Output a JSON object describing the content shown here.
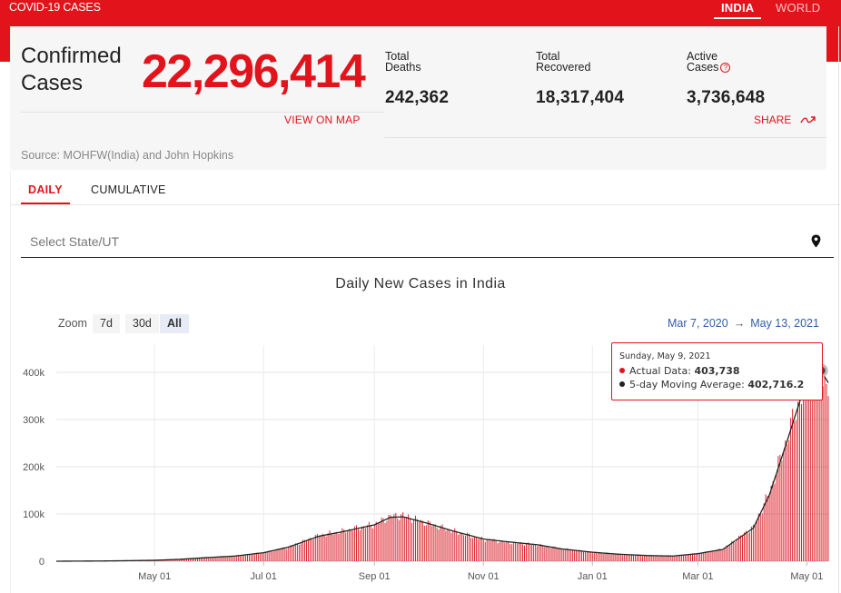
{
  "header": {
    "brand": "COVID-19 CASES",
    "region_tabs": [
      {
        "label": "INDIA",
        "active": true
      },
      {
        "label": "WORLD",
        "active": false
      }
    ]
  },
  "summary": {
    "confirmed_label": "Confirmed Cases",
    "confirmed_value": "22,296,414",
    "deaths_label": "Total Deaths",
    "deaths_value": "242,362",
    "recovered_label": "Total Recovered",
    "recovered_value": "18,317,404",
    "active_label": "Active Cases",
    "active_value": "3,736,648",
    "view_map": "VIEW ON MAP",
    "share": "SHARE",
    "source": "Source: MOHFW(India) and John Hopkins"
  },
  "tabs": [
    {
      "label": "DAILY",
      "active": true
    },
    {
      "label": "CUMULATIVE",
      "active": false
    }
  ],
  "state_select": {
    "placeholder": "Select State/UT",
    "icon": "location-pin-icon"
  },
  "zoom": {
    "label": "Zoom",
    "options": [
      "7d",
      "30d",
      "All"
    ],
    "selected": "All"
  },
  "range": {
    "from": "Mar 7, 2020",
    "arrow": "→",
    "to": "May 13, 2021"
  },
  "tooltip": {
    "date": "Sunday, May 9, 2021",
    "actual_label": "Actual Data:",
    "actual_value": "403,738",
    "average_label": "5-day Moving Average:",
    "average_value": "402,716.2"
  },
  "colors": {
    "accent": "#e3131b",
    "bar": "#d8101a",
    "average_line": "#222222",
    "link": "#335cad"
  },
  "chart_data": {
    "type": "bar",
    "title": "Daily New Cases in India",
    "x_range": [
      "2020-03-07",
      "2021-05-13"
    ],
    "x_ticks": [
      "May 01",
      "Jul 01",
      "Sep 01",
      "Nov 01",
      "Jan 01",
      "Mar 01",
      "May 01"
    ],
    "y_ticks": [
      "0",
      "100k",
      "200k",
      "300k",
      "400k"
    ],
    "ylim": [
      0,
      400000
    ],
    "grid": true,
    "series": [
      {
        "name": "Actual Data",
        "kind": "bar",
        "points": [
          [
            "2020-03-07",
            0
          ],
          [
            "2020-04-01",
            500
          ],
          [
            "2020-04-15",
            1100
          ],
          [
            "2020-05-01",
            2000
          ],
          [
            "2020-05-15",
            4000
          ],
          [
            "2020-06-01",
            8000
          ],
          [
            "2020-06-15",
            11000
          ],
          [
            "2020-07-01",
            18000
          ],
          [
            "2020-07-15",
            30000
          ],
          [
            "2020-08-01",
            55000
          ],
          [
            "2020-08-15",
            64000
          ],
          [
            "2020-09-01",
            78000
          ],
          [
            "2020-09-10",
            95000
          ],
          [
            "2020-09-17",
            97000
          ],
          [
            "2020-10-01",
            80000
          ],
          [
            "2020-10-15",
            64000
          ],
          [
            "2020-11-01",
            46000
          ],
          [
            "2020-11-15",
            40000
          ],
          [
            "2020-12-01",
            35000
          ],
          [
            "2020-12-15",
            26000
          ],
          [
            "2021-01-01",
            19000
          ],
          [
            "2021-01-15",
            15000
          ],
          [
            "2021-02-01",
            12000
          ],
          [
            "2021-02-15",
            11000
          ],
          [
            "2021-03-01",
            16000
          ],
          [
            "2021-03-15",
            26000
          ],
          [
            "2021-04-01",
            72000
          ],
          [
            "2021-04-10",
            145000
          ],
          [
            "2021-04-20",
            260000
          ],
          [
            "2021-05-01",
            390000
          ],
          [
            "2021-05-09",
            403738
          ],
          [
            "2021-05-13",
            362000
          ]
        ]
      },
      {
        "name": "5-day Moving Average",
        "kind": "line",
        "points": [
          [
            "2020-03-07",
            0
          ],
          [
            "2020-04-01",
            500
          ],
          [
            "2020-04-15",
            1100
          ],
          [
            "2020-05-01",
            2000
          ],
          [
            "2020-05-15",
            4000
          ],
          [
            "2020-06-01",
            8000
          ],
          [
            "2020-06-15",
            11000
          ],
          [
            "2020-07-01",
            18000
          ],
          [
            "2020-07-15",
            30000
          ],
          [
            "2020-08-01",
            53000
          ],
          [
            "2020-08-15",
            63000
          ],
          [
            "2020-09-01",
            77000
          ],
          [
            "2020-09-10",
            93000
          ],
          [
            "2020-09-17",
            94000
          ],
          [
            "2020-10-01",
            80000
          ],
          [
            "2020-10-15",
            64000
          ],
          [
            "2020-11-01",
            47000
          ],
          [
            "2020-11-15",
            41000
          ],
          [
            "2020-12-01",
            35000
          ],
          [
            "2020-12-15",
            26000
          ],
          [
            "2021-01-01",
            19000
          ],
          [
            "2021-01-15",
            15000
          ],
          [
            "2021-02-01",
            12000
          ],
          [
            "2021-02-15",
            11000
          ],
          [
            "2021-03-01",
            16000
          ],
          [
            "2021-03-15",
            25000
          ],
          [
            "2021-04-01",
            70000
          ],
          [
            "2021-04-10",
            140000
          ],
          [
            "2021-04-20",
            255000
          ],
          [
            "2021-05-01",
            385000
          ],
          [
            "2021-05-09",
            402716.2
          ],
          [
            "2021-05-13",
            378000
          ]
        ]
      }
    ]
  }
}
